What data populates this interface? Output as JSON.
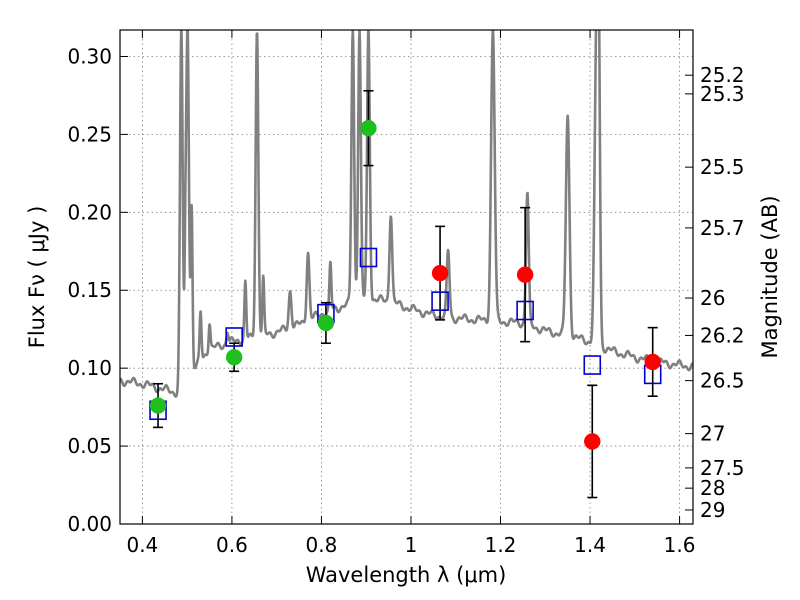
{
  "chart_data": {
    "type": "scatter",
    "title": "",
    "xlabel": "Wavelength  λ (μm)",
    "ylabel": "Flux  Fν  ( μJy )",
    "y2label": "Magnitude (AB)",
    "xlim": [
      0.35,
      1.63
    ],
    "ylim": [
      0.0,
      0.317
    ],
    "grid": true,
    "x_ticks": [
      0.4,
      0.6,
      0.8,
      1.0,
      1.2,
      1.4,
      1.6
    ],
    "x_tick_labels": [
      "0.4",
      "0.6",
      "0.8",
      "1",
      "1.2",
      "1.4",
      "1.6"
    ],
    "y_ticks": [
      0.0,
      0.05,
      0.1,
      0.15,
      0.2,
      0.25,
      0.3
    ],
    "y_tick_labels": [
      "0.00",
      "0.05",
      "0.10",
      "0.15",
      "0.20",
      "0.25",
      "0.30"
    ],
    "y2_ticks": [
      {
        "label": "25.2",
        "flux": 0.288
      },
      {
        "label": "25.3",
        "flux": 0.276
      },
      {
        "label": "25.5",
        "flux": 0.229
      },
      {
        "label": "25.7",
        "flux": 0.19
      },
      {
        "label": "26",
        "flux": 0.145
      },
      {
        "label": "26.2",
        "flux": 0.121
      },
      {
        "label": "26.5",
        "flux": 0.092
      },
      {
        "label": "27",
        "flux": 0.058
      },
      {
        "label": "27.5",
        "flux": 0.036
      },
      {
        "label": "28",
        "flux": 0.023
      },
      {
        "label": "29",
        "flux": 0.009
      }
    ],
    "colors": {
      "spectrum": "#808080",
      "model": "#0000cc",
      "optical": "#1fbf1f",
      "nir": "#ff0000",
      "errorbar": "#000000",
      "grid": "#808080"
    },
    "spectrum": {
      "continuum": [
        [
          0.35,
          0.092
        ],
        [
          0.4,
          0.09
        ],
        [
          0.44,
          0.087
        ],
        [
          0.48,
          0.084
        ],
        [
          0.5,
          0.095
        ],
        [
          0.55,
          0.112
        ],
        [
          0.6,
          0.117
        ],
        [
          0.65,
          0.12
        ],
        [
          0.7,
          0.123
        ],
        [
          0.75,
          0.128
        ],
        [
          0.8,
          0.135
        ],
        [
          0.85,
          0.14
        ],
        [
          0.9,
          0.145
        ],
        [
          0.95,
          0.143
        ],
        [
          1.0,
          0.138
        ],
        [
          1.05,
          0.134
        ],
        [
          1.1,
          0.132
        ],
        [
          1.15,
          0.131
        ],
        [
          1.2,
          0.13
        ],
        [
          1.25,
          0.129
        ],
        [
          1.3,
          0.124
        ],
        [
          1.35,
          0.121
        ],
        [
          1.4,
          0.117
        ],
        [
          1.45,
          0.111
        ],
        [
          1.5,
          0.107
        ],
        [
          1.55,
          0.104
        ],
        [
          1.6,
          0.102
        ],
        [
          1.63,
          0.101
        ]
      ],
      "lines": [
        [
          0.487,
          0.317,
          0.003
        ],
        [
          0.496,
          0.155,
          0.002
        ],
        [
          0.501,
          0.317,
          0.003
        ],
        [
          0.51,
          0.203,
          0.002
        ],
        [
          0.53,
          0.135,
          0.002
        ],
        [
          0.55,
          0.13,
          0.002
        ],
        [
          0.59,
          0.124,
          0.002
        ],
        [
          0.63,
          0.155,
          0.002
        ],
        [
          0.656,
          0.317,
          0.003
        ],
        [
          0.67,
          0.157,
          0.002
        ],
        [
          0.73,
          0.15,
          0.003
        ],
        [
          0.77,
          0.175,
          0.003
        ],
        [
          0.82,
          0.167,
          0.002
        ],
        [
          0.87,
          0.317,
          0.003
        ],
        [
          0.885,
          0.317,
          0.003
        ],
        [
          0.905,
          0.317,
          0.003
        ],
        [
          0.955,
          0.2,
          0.003
        ],
        [
          1.083,
          0.175,
          0.003
        ],
        [
          1.183,
          0.317,
          0.004
        ],
        [
          1.26,
          0.213,
          0.003
        ],
        [
          1.35,
          0.262,
          0.004
        ],
        [
          1.414,
          0.29,
          0.004
        ],
        [
          1.419,
          0.3,
          0.003
        ]
      ]
    },
    "series": [
      {
        "kind": "open-square",
        "x": [
          0.435,
          0.605,
          0.81,
          0.905,
          1.065,
          1.255,
          1.405,
          1.54
        ],
        "y": [
          0.073,
          0.12,
          0.135,
          0.171,
          0.143,
          0.137,
          0.102,
          0.096
        ]
      },
      {
        "kind": "green-dot",
        "x": [
          0.435,
          0.605,
          0.81,
          0.905
        ],
        "y": [
          0.076,
          0.107,
          0.129,
          0.254
        ],
        "err": [
          0.014,
          0.009,
          0.013,
          0.024
        ]
      },
      {
        "kind": "red-dot",
        "x": [
          1.065,
          1.255,
          1.405,
          1.54
        ],
        "y": [
          0.161,
          0.16,
          0.053,
          0.104
        ],
        "err": [
          0.03,
          0.043,
          0.036,
          0.022
        ]
      }
    ]
  }
}
